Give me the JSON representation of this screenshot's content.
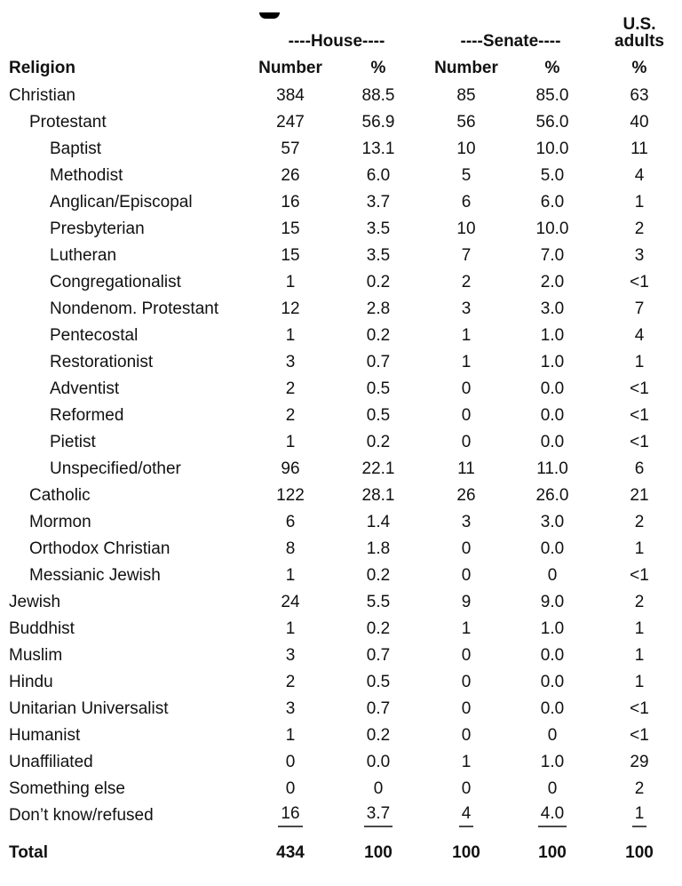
{
  "colors": {
    "background": "#ffffff",
    "text": "#111111",
    "underline": "#4a4a4a"
  },
  "table": {
    "group_header": {
      "house": "----House----",
      "senate": "----Senate----",
      "us_line1": "U.S.",
      "us_line2": "adults"
    },
    "columns": [
      "Religion",
      "Number",
      "%",
      "Number",
      "%",
      "%"
    ],
    "rows": [
      {
        "label": "Christian",
        "indent": 0,
        "style": "normal",
        "values": [
          "384",
          "88.5",
          "85",
          "85.0",
          "63"
        ]
      },
      {
        "label": "Protestant",
        "indent": 1,
        "style": "normal",
        "values": [
          "247",
          "56.9",
          "56",
          "56.0",
          "40"
        ]
      },
      {
        "label": "Baptist",
        "indent": 2,
        "style": "normal",
        "values": [
          "57",
          "13.1",
          "10",
          "10.0",
          "11"
        ]
      },
      {
        "label": "Methodist",
        "indent": 2,
        "style": "normal",
        "values": [
          "26",
          "6.0",
          "5",
          "5.0",
          "4"
        ]
      },
      {
        "label": "Anglican/Episcopal",
        "indent": 2,
        "style": "normal",
        "values": [
          "16",
          "3.7",
          "6",
          "6.0",
          "1"
        ]
      },
      {
        "label": "Presbyterian",
        "indent": 2,
        "style": "normal",
        "values": [
          "15",
          "3.5",
          "10",
          "10.0",
          "2"
        ]
      },
      {
        "label": "Lutheran",
        "indent": 2,
        "style": "normal",
        "values": [
          "15",
          "3.5",
          "7",
          "7.0",
          "3"
        ]
      },
      {
        "label": "Congregationalist",
        "indent": 2,
        "style": "normal",
        "values": [
          "1",
          "0.2",
          "2",
          "2.0",
          "<1"
        ]
      },
      {
        "label": "Nondenom. Protestant",
        "indent": 2,
        "style": "normal",
        "values": [
          "12",
          "2.8",
          "3",
          "3.0",
          "7"
        ]
      },
      {
        "label": "Pentecostal",
        "indent": 2,
        "style": "normal",
        "values": [
          "1",
          "0.2",
          "1",
          "1.0",
          "4"
        ]
      },
      {
        "label": "Restorationist",
        "indent": 2,
        "style": "normal",
        "values": [
          "3",
          "0.7",
          "1",
          "1.0",
          "1"
        ]
      },
      {
        "label": "Adventist",
        "indent": 2,
        "style": "normal",
        "values": [
          "2",
          "0.5",
          "0",
          "0.0",
          "<1"
        ]
      },
      {
        "label": "Reformed",
        "indent": 2,
        "style": "normal",
        "values": [
          "2",
          "0.5",
          "0",
          "0.0",
          "<1"
        ]
      },
      {
        "label": "Pietist",
        "indent": 2,
        "style": "normal",
        "values": [
          "1",
          "0.2",
          "0",
          "0.0",
          "<1"
        ]
      },
      {
        "label": "Unspecified/other",
        "indent": 2,
        "style": "normal",
        "values": [
          "96",
          "22.1",
          "11",
          "11.0",
          "6"
        ]
      },
      {
        "label": "Catholic",
        "indent": 1,
        "style": "normal",
        "values": [
          "122",
          "28.1",
          "26",
          "26.0",
          "21"
        ]
      },
      {
        "label": "Mormon",
        "indent": 1,
        "style": "normal",
        "values": [
          "6",
          "1.4",
          "3",
          "3.0",
          "2"
        ]
      },
      {
        "label": "Orthodox Christian",
        "indent": 1,
        "style": "normal",
        "values": [
          "8",
          "1.8",
          "0",
          "0.0",
          "1"
        ]
      },
      {
        "label": "Messianic Jewish",
        "indent": 1,
        "style": "normal",
        "values": [
          "1",
          "0.2",
          "0",
          "0",
          "<1"
        ]
      },
      {
        "label": "Jewish",
        "indent": 0,
        "style": "normal",
        "values": [
          "24",
          "5.5",
          "9",
          "9.0",
          "2"
        ]
      },
      {
        "label": "Buddhist",
        "indent": 0,
        "style": "normal",
        "values": [
          "1",
          "0.2",
          "1",
          "1.0",
          "1"
        ]
      },
      {
        "label": "Muslim",
        "indent": 0,
        "style": "normal",
        "values": [
          "3",
          "0.7",
          "0",
          "0.0",
          "1"
        ]
      },
      {
        "label": "Hindu",
        "indent": 0,
        "style": "normal",
        "values": [
          "2",
          "0.5",
          "0",
          "0.0",
          "1"
        ]
      },
      {
        "label": "Unitarian Universalist",
        "indent": 0,
        "style": "normal",
        "values": [
          "3",
          "0.7",
          "0",
          "0.0",
          "<1"
        ]
      },
      {
        "label": "Humanist",
        "indent": 0,
        "style": "normal",
        "values": [
          "1",
          "0.2",
          "0",
          "0",
          "<1"
        ]
      },
      {
        "label": "Unaffiliated",
        "indent": 0,
        "style": "normal",
        "values": [
          "0",
          "0.0",
          "1",
          "1.0",
          "29"
        ]
      },
      {
        "label": "Something else",
        "indent": 0,
        "style": "normal",
        "values": [
          "0",
          "0",
          "0",
          "0",
          "2"
        ]
      },
      {
        "label": "Don’t know/refused",
        "indent": 0,
        "style": "underline",
        "values": [
          "16",
          "3.7",
          "4",
          "4.0",
          "1"
        ]
      },
      {
        "label": "Total",
        "indent": 0,
        "style": "total",
        "values": [
          "434",
          "100",
          "100",
          "100",
          "100"
        ]
      }
    ]
  }
}
